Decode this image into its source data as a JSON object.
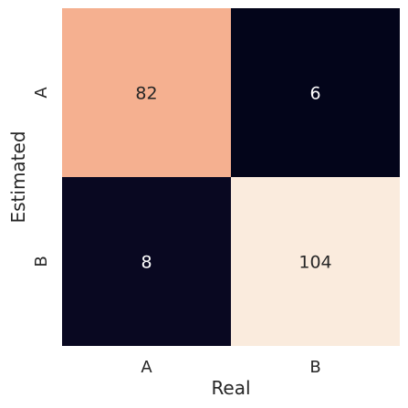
{
  "chart_data": {
    "type": "heatmap",
    "title": "",
    "xlabel": "Real",
    "ylabel": "Estimated",
    "x_categories": [
      "A",
      "B"
    ],
    "y_categories": [
      "A",
      "B"
    ],
    "values": [
      [
        82,
        6
      ],
      [
        8,
        104
      ]
    ],
    "value_range": [
      6,
      104
    ],
    "colorbar": false,
    "grid": false,
    "colormap": [
      "#03051a",
      "#2b1b4d",
      "#6b1f6e",
      "#b02a5b",
      "#e4513f",
      "#f39a75",
      "#f8cdb3",
      "#faebdd"
    ],
    "label_colors": {
      "dark_background": "#ffffff",
      "light_background": "#262626"
    }
  }
}
